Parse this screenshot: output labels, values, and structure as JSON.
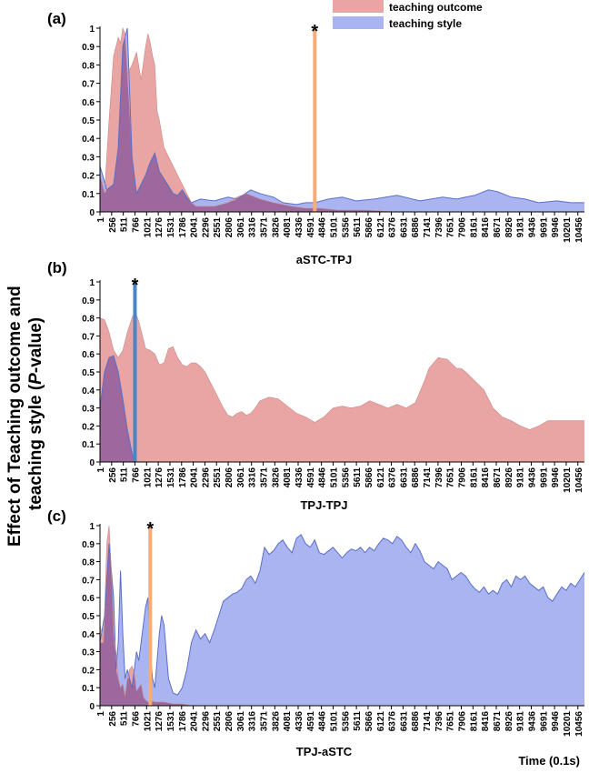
{
  "legend": [
    {
      "label": "teaching outcome",
      "color": "#e8a5a4"
    },
    {
      "label": "teaching style",
      "color": "#a9b4f0"
    }
  ],
  "y_axis_label_line1": "Effect of Teaching outcome and",
  "y_axis_label_line2_a": "teaching style (",
  "y_axis_label_line2_p": "P",
  "y_axis_label_line2_b": "-value)",
  "time_label": "Time (0.1s)",
  "colors": {
    "outcome_fill": "#e8a5a4",
    "style_fill": "#a9b4f0",
    "overlap_fill": "#9c689e",
    "style_edge": "#5a6fc8",
    "marker_orange": "#f4ad78",
    "marker_blue": "#4a86c6"
  },
  "chart_data": [
    {
      "type": "area",
      "panel": "(a)",
      "xlabel": "aSTC-TPJ",
      "ylim": [
        0,
        1
      ],
      "yticks": [
        "0",
        "0.1",
        "0.2",
        "0.3",
        "0.4",
        "0.5",
        "0.6",
        "0.7",
        "0.8",
        "0.9",
        "1"
      ],
      "xlim": [
        1,
        10600
      ],
      "xticks": [
        "1",
        "256",
        "511",
        "766",
        "1021",
        "1276",
        "1531",
        "1786",
        "2041",
        "2296",
        "2551",
        "2806",
        "3061",
        "3316",
        "3571",
        "3826",
        "4081",
        "4336",
        "4591",
        "4846",
        "5101",
        "5356",
        "5611",
        "5866",
        "6121",
        "6376",
        "6631",
        "6886",
        "7141",
        "7396",
        "7651",
        "7906",
        "8161",
        "8416",
        "8671",
        "8926",
        "9181",
        "9436",
        "9691",
        "9946",
        "10201",
        "10456"
      ],
      "marker": {
        "x": 4700,
        "label": "*",
        "color": "orange"
      },
      "series": [
        {
          "name": "teaching outcome",
          "x": [
            1,
            100,
            200,
            300,
            350,
            400,
            450,
            500,
            550,
            600,
            700,
            800,
            900,
            1000,
            1050,
            1100,
            1150,
            1200,
            1250,
            1300,
            1400,
            1500,
            1600,
            1700,
            1800,
            1900,
            2000,
            2100,
            2300,
            2500,
            2800,
            3000,
            3200,
            3500,
            3800,
            4000,
            4200,
            4500,
            4800,
            5200,
            5800,
            6500,
            7000,
            8000,
            9000,
            10000,
            10600
          ],
          "y": [
            0.2,
            0.1,
            0.5,
            0.85,
            0.9,
            0.95,
            0.92,
            1.0,
            0.97,
            0.75,
            0.8,
            0.87,
            0.72,
            0.9,
            0.97,
            0.92,
            0.85,
            0.8,
            0.55,
            0.5,
            0.35,
            0.3,
            0.25,
            0.2,
            0.15,
            0.1,
            0.05,
            0.03,
            0.03,
            0.03,
            0.05,
            0.08,
            0.1,
            0.07,
            0.05,
            0.04,
            0.03,
            0.02,
            0.02,
            0.01,
            0.01,
            0.0,
            0.0,
            0.0,
            0.0,
            0.0,
            0.0
          ]
        },
        {
          "name": "teaching style",
          "x": [
            1,
            150,
            300,
            400,
            500,
            600,
            700,
            800,
            900,
            1000,
            1100,
            1200,
            1300,
            1400,
            1500,
            1600,
            1700,
            1800,
            1900,
            2000,
            2200,
            2500,
            2800,
            3000,
            3300,
            3500,
            3800,
            4000,
            4300,
            4500,
            4700,
            5000,
            5300,
            5600,
            6000,
            6500,
            7000,
            7500,
            7800,
            8000,
            8200,
            8500,
            8700,
            9000,
            9300,
            9600,
            10000,
            10300,
            10600
          ],
          "y": [
            0.25,
            0.12,
            0.15,
            0.35,
            0.9,
            1.0,
            0.3,
            0.1,
            0.15,
            0.2,
            0.27,
            0.32,
            0.22,
            0.18,
            0.14,
            0.1,
            0.09,
            0.12,
            0.08,
            0.05,
            0.07,
            0.06,
            0.08,
            0.07,
            0.12,
            0.1,
            0.08,
            0.05,
            0.04,
            0.05,
            0.05,
            0.07,
            0.08,
            0.06,
            0.07,
            0.09,
            0.06,
            0.08,
            0.07,
            0.08,
            0.09,
            0.12,
            0.11,
            0.08,
            0.07,
            0.05,
            0.06,
            0.05,
            0.05
          ]
        }
      ]
    },
    {
      "type": "area",
      "panel": "(b)",
      "xlabel": "TPJ-TPJ",
      "ylim": [
        0,
        1
      ],
      "yticks": [
        "0",
        "0.1",
        "0.2",
        "0.3",
        "0.4",
        "0.5",
        "0.6",
        "0.7",
        "0.8",
        "0.9",
        "1"
      ],
      "xlim": [
        1,
        10600
      ],
      "xticks": [
        "1",
        "256",
        "511",
        "766",
        "1021",
        "1276",
        "1531",
        "1786",
        "2041",
        "2296",
        "2551",
        "2806",
        "3061",
        "3316",
        "3571",
        "3826",
        "4081",
        "4336",
        "4591",
        "4846",
        "5101",
        "5356",
        "5611",
        "5866",
        "6121",
        "6376",
        "6631",
        "6886",
        "7141",
        "7396",
        "7651",
        "7906",
        "8161",
        "8416",
        "8671",
        "8926",
        "9181",
        "9436",
        "9691",
        "9946",
        "10201",
        "10456"
      ],
      "marker": {
        "x": 766,
        "label": "*",
        "color": "blue"
      },
      "series": [
        {
          "name": "teaching outcome",
          "x": [
            1,
            100,
            200,
            300,
            400,
            500,
            600,
            700,
            766,
            850,
            1000,
            1100,
            1200,
            1300,
            1400,
            1500,
            1600,
            1700,
            1800,
            1900,
            2000,
            2100,
            2200,
            2300,
            2400,
            2500,
            2600,
            2700,
            2800,
            2900,
            3000,
            3100,
            3200,
            3300,
            3400,
            3500,
            3700,
            3900,
            4100,
            4300,
            4500,
            4700,
            4900,
            5100,
            5300,
            5500,
            5700,
            5900,
            6100,
            6300,
            6500,
            6700,
            6900,
            7100,
            7200,
            7400,
            7600,
            7800,
            7900,
            8000,
            8200,
            8400,
            8600,
            8800,
            9000,
            9200,
            9400,
            9600,
            9800,
            10000,
            10200,
            10400,
            10600
          ],
          "y": [
            0.8,
            0.79,
            0.72,
            0.62,
            0.58,
            0.62,
            0.72,
            0.8,
            0.84,
            0.78,
            0.63,
            0.62,
            0.6,
            0.54,
            0.55,
            0.63,
            0.64,
            0.58,
            0.54,
            0.53,
            0.55,
            0.55,
            0.53,
            0.5,
            0.45,
            0.4,
            0.35,
            0.3,
            0.26,
            0.25,
            0.27,
            0.28,
            0.26,
            0.27,
            0.3,
            0.34,
            0.36,
            0.35,
            0.31,
            0.27,
            0.25,
            0.22,
            0.25,
            0.3,
            0.31,
            0.3,
            0.31,
            0.34,
            0.32,
            0.3,
            0.32,
            0.3,
            0.33,
            0.45,
            0.52,
            0.58,
            0.57,
            0.52,
            0.52,
            0.5,
            0.45,
            0.4,
            0.3,
            0.25,
            0.23,
            0.2,
            0.18,
            0.2,
            0.23,
            0.23,
            0.23,
            0.23,
            0.23
          ]
        },
        {
          "name": "teaching style",
          "x": [
            1,
            100,
            200,
            300,
            400,
            500,
            600,
            700,
            750,
            766,
            800,
            10600
          ],
          "y": [
            0.3,
            0.5,
            0.58,
            0.59,
            0.5,
            0.35,
            0.18,
            0.05,
            0.01,
            0.0,
            0.0,
            0.0
          ]
        }
      ]
    },
    {
      "type": "area",
      "panel": "(c)",
      "xlabel": "TPJ-aSTC",
      "ylim": [
        0,
        1
      ],
      "yticks": [
        "0",
        "0.1",
        "0.2",
        "0.3",
        "0.4",
        "0.5",
        "0.6",
        "0.7",
        "0.8",
        "0.9",
        "1"
      ],
      "xlim": [
        1,
        10600
      ],
      "xticks": [
        "1",
        "256",
        "511",
        "766",
        "1021",
        "1276",
        "1531",
        "1786",
        "2041",
        "2296",
        "2551",
        "2806",
        "3061",
        "3316",
        "3571",
        "3826",
        "4081",
        "4336",
        "4591",
        "4846",
        "5101",
        "5356",
        "5611",
        "5866",
        "6121",
        "6376",
        "6631",
        "6886",
        "7141",
        "7396",
        "7651",
        "7906",
        "8161",
        "8416",
        "8671",
        "8926",
        "9181",
        "9436",
        "9691",
        "9946",
        "10201",
        "10456"
      ],
      "marker": {
        "x": 1100,
        "label": "*",
        "color": "orange"
      },
      "series": [
        {
          "name": "teaching outcome",
          "x": [
            1,
            80,
            150,
            200,
            260,
            300,
            350,
            400,
            450,
            500,
            550,
            600,
            650,
            700,
            750,
            800,
            850,
            900,
            950,
            1000,
            1050,
            1100,
            1200,
            1400,
            1600,
            1800,
            2000,
            10600
          ],
          "y": [
            0.45,
            0.35,
            0.9,
            1.0,
            0.7,
            0.4,
            0.3,
            0.15,
            0.1,
            0.12,
            0.05,
            0.15,
            0.2,
            0.22,
            0.18,
            0.08,
            0.1,
            0.12,
            0.05,
            0.03,
            0.02,
            0.03,
            0.02,
            0.02,
            0.01,
            0.01,
            0.0,
            0.0
          ]
        },
        {
          "name": "teaching style",
          "x": [
            1,
            100,
            200,
            300,
            350,
            400,
            450,
            500,
            550,
            600,
            650,
            700,
            750,
            800,
            850,
            900,
            950,
            1000,
            1050,
            1100,
            1150,
            1200,
            1300,
            1350,
            1400,
            1450,
            1500,
            1600,
            1700,
            1800,
            1900,
            2000,
            2100,
            2200,
            2300,
            2400,
            2500,
            2600,
            2700,
            2800,
            2900,
            3000,
            3100,
            3200,
            3300,
            3400,
            3500,
            3600,
            3700,
            3800,
            3900,
            4000,
            4100,
            4200,
            4300,
            4400,
            4500,
            4600,
            4700,
            4800,
            4900,
            5000,
            5100,
            5200,
            5300,
            5400,
            5500,
            5600,
            5700,
            5800,
            5900,
            6000,
            6100,
            6200,
            6300,
            6400,
            6500,
            6600,
            6700,
            6800,
            6900,
            7000,
            7100,
            7200,
            7300,
            7400,
            7500,
            7600,
            7700,
            7800,
            7900,
            8000,
            8100,
            8200,
            8300,
            8400,
            8500,
            8600,
            8700,
            8800,
            8900,
            9000,
            9100,
            9200,
            9300,
            9400,
            9500,
            9600,
            9700,
            9800,
            9900,
            10000,
            10100,
            10200,
            10300,
            10400,
            10500,
            10600
          ],
          "y": [
            0.35,
            0.5,
            0.9,
            0.6,
            0.2,
            0.35,
            0.75,
            0.4,
            0.15,
            0.2,
            0.15,
            0.1,
            0.2,
            0.3,
            0.25,
            0.35,
            0.45,
            0.55,
            0.6,
            0.3,
            0.15,
            0.1,
            0.4,
            0.5,
            0.45,
            0.3,
            0.15,
            0.07,
            0.06,
            0.1,
            0.2,
            0.35,
            0.42,
            0.37,
            0.4,
            0.35,
            0.42,
            0.5,
            0.58,
            0.6,
            0.62,
            0.63,
            0.65,
            0.7,
            0.72,
            0.68,
            0.75,
            0.88,
            0.84,
            0.86,
            0.9,
            0.92,
            0.88,
            0.85,
            0.93,
            0.95,
            0.9,
            0.88,
            0.92,
            0.85,
            0.84,
            0.86,
            0.88,
            0.85,
            0.82,
            0.85,
            0.87,
            0.86,
            0.88,
            0.85,
            0.88,
            0.86,
            0.9,
            0.93,
            0.92,
            0.9,
            0.94,
            0.92,
            0.88,
            0.85,
            0.9,
            0.86,
            0.8,
            0.78,
            0.76,
            0.8,
            0.78,
            0.76,
            0.7,
            0.72,
            0.74,
            0.72,
            0.68,
            0.65,
            0.63,
            0.66,
            0.62,
            0.64,
            0.62,
            0.68,
            0.7,
            0.66,
            0.72,
            0.7,
            0.72,
            0.68,
            0.66,
            0.64,
            0.66,
            0.6,
            0.58,
            0.62,
            0.66,
            0.64,
            0.68,
            0.66,
            0.7,
            0.74
          ]
        }
      ]
    }
  ]
}
